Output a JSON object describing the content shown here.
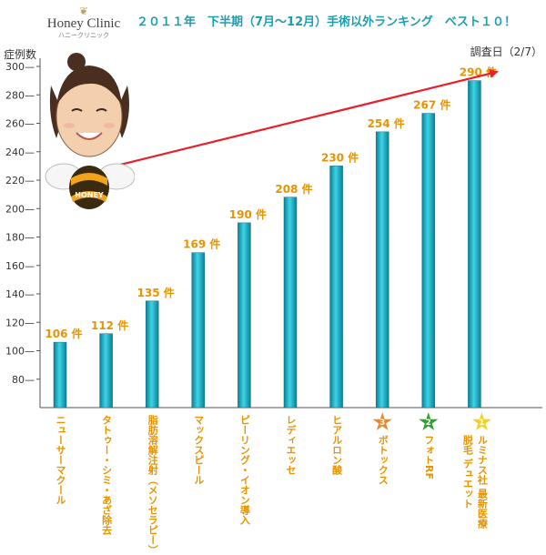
{
  "logo": {
    "name": "Honey Clinic",
    "sub": "ハニークリニック"
  },
  "title": "２０１１年　下半期（7月〜12月）手術以外ランキング　ベスト１０！",
  "y_label": "症例数",
  "survey_date": "調査日（2/7）",
  "mascot": {
    "badge_text": "HONEY"
  },
  "colors": {
    "bar": "#1ba6ba",
    "label": "#e89400",
    "title": "#1a9fae",
    "arrow": "#e8202a"
  },
  "chart_data": {
    "type": "bar",
    "title": "２０１１年　下半期（7月〜12月）手術以外ランキング　ベスト１０！",
    "xlabel": "",
    "ylabel": "症例数",
    "ylim": [
      60,
      300
    ],
    "y_ticks": [
      80,
      100,
      120,
      140,
      160,
      180,
      200,
      220,
      240,
      260,
      280,
      300
    ],
    "y_tick_labels": [
      "80",
      "100",
      "120",
      "140",
      "160",
      "180",
      "200",
      "220",
      "240",
      "260",
      "280",
      "300"
    ],
    "categories": [
      "ニューサーマクール",
      "タトゥー・シミ・あざ除去",
      "脂肪溶解注射（メソセラピー）",
      "マックスピール",
      "ピーリング・イオン導入",
      "レディエッセ",
      "ヒアルロン酸",
      "ボトックス",
      "フォトRF",
      "ルミナス社 最新医療脱毛 デュエット"
    ],
    "category_lines": [
      [
        "ニューサーマクール"
      ],
      [
        "タトゥー・シミ・あざ除去"
      ],
      [
        "脂肪溶解注射（メソセラピー）"
      ],
      [
        "マックスピール"
      ],
      [
        "ピーリング・イオン導入"
      ],
      [
        "レディエッセ"
      ],
      [
        "ヒアルロン酸"
      ],
      [
        "ボトックス"
      ],
      [
        "フォトRF"
      ],
      [
        "ルミナス社 最新医療",
        "脱毛 デュエット"
      ]
    ],
    "values": [
      106,
      112,
      135,
      169,
      190,
      208,
      230,
      254,
      267,
      290
    ],
    "data_labels": [
      "106 件",
      "112 件",
      "135 件",
      "169 件",
      "190 件",
      "208 件",
      "230 件",
      "254 件",
      "267 件",
      "290 件"
    ],
    "ranks": [
      {
        "index": 7,
        "rank": "3",
        "color": "#e8892c"
      },
      {
        "index": 8,
        "rank": "2",
        "color": "#2fa12f"
      },
      {
        "index": 9,
        "rank": "1",
        "color": "#f3d21e"
      }
    ],
    "grid": false,
    "legend": "none"
  }
}
